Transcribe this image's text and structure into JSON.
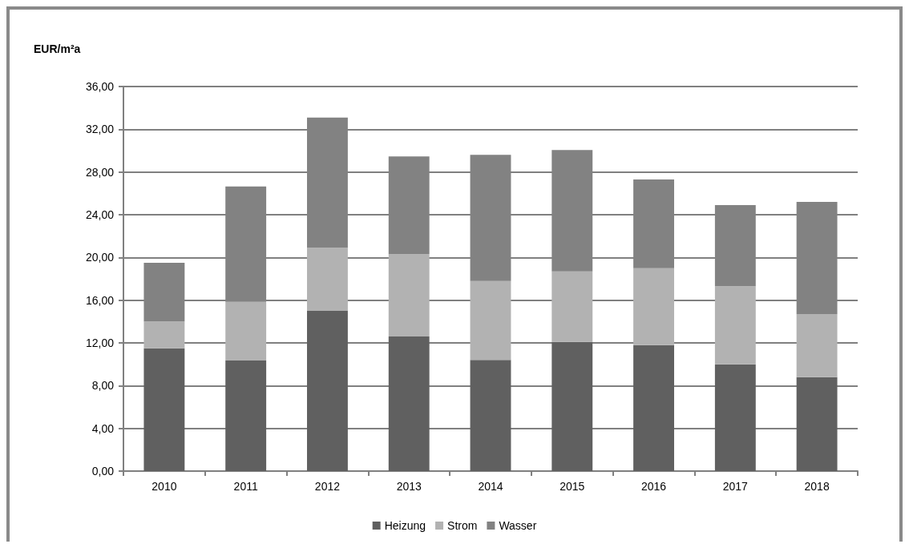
{
  "chart_data": {
    "type": "bar",
    "ylabel": "EUR/m²a",
    "categories": [
      "2010",
      "2011",
      "2012",
      "2013",
      "2014",
      "2015",
      "2016",
      "2017",
      "2018"
    ],
    "stacked": true,
    "series": [
      {
        "name": "Heizung",
        "color": "#606060",
        "values": [
          11.5,
          10.35,
          15.0,
          12.6,
          10.4,
          12.1,
          11.8,
          10.0,
          8.8
        ]
      },
      {
        "name": "Strom",
        "color": "#b2b2b2",
        "values": [
          2.5,
          5.5,
          5.9,
          7.7,
          7.4,
          6.6,
          7.2,
          7.3,
          5.9
        ]
      },
      {
        "name": "Wasser",
        "color": "#828282",
        "values": [
          5.5,
          10.8,
          12.2,
          9.15,
          11.8,
          11.35,
          8.3,
          7.6,
          10.5
        ]
      }
    ],
    "ylim": [
      0,
      36
    ],
    "yticks": [
      {
        "value": 0,
        "label": "0,00"
      },
      {
        "value": 4,
        "label": "4,00"
      },
      {
        "value": 8,
        "label": "8,00"
      },
      {
        "value": 12,
        "label": "12,00"
      },
      {
        "value": 16,
        "label": "16,00"
      },
      {
        "value": 20,
        "label": "20,00"
      },
      {
        "value": 24,
        "label": "24,00"
      },
      {
        "value": 28,
        "label": "28,00"
      },
      {
        "value": 32,
        "label": "32,00"
      },
      {
        "value": 36,
        "label": "36,00"
      }
    ],
    "grid": "y",
    "legend": "bottom"
  }
}
